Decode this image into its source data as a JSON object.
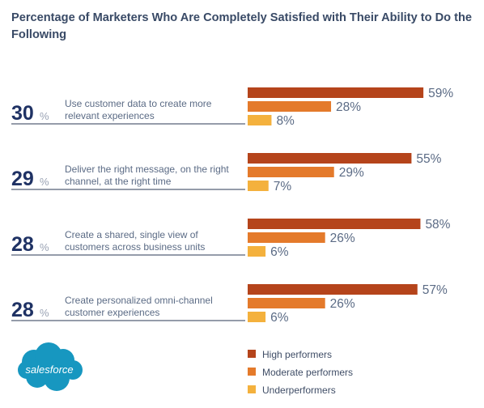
{
  "title": "Percentage of Marketers Who Are Completely Satisfied with Their Ability to Do the Following",
  "logo": {
    "text": "salesforce",
    "color": "#1797c0"
  },
  "colors": {
    "high_performers": "#b5441b",
    "moderate_performers": "#e47a2b",
    "underperformers": "#f4b13d",
    "overall_number": "#1f3264",
    "text": "#5b6b85",
    "divider": "#2b3a55"
  },
  "legend": [
    {
      "label": "High performers",
      "color": "#b5441b"
    },
    {
      "label": "Moderate performers",
      "color": "#e47a2b"
    },
    {
      "label": "Underperformers",
      "color": "#f4b13d"
    }
  ],
  "chart_data": {
    "type": "bar",
    "orientation": "horizontal",
    "unit": "%",
    "categories": [
      "Use customer data to create more relevant experiences",
      "Deliver the right message, on the right channel, at the right time",
      "Create a shared, single view of customers across business units",
      "Create personalized omni-channel customer experiences"
    ],
    "category_lines": [
      [
        "Use customer data to create more",
        "relevant experiences"
      ],
      [
        "Deliver the right message, on the right",
        "channel, at the right time"
      ],
      [
        "Create a shared, single view of",
        "customers across business units"
      ],
      [
        "Create personalized omni-channel",
        "customer experiences"
      ]
    ],
    "overall": [
      30,
      29,
      28,
      28
    ],
    "overall_suffix": "%",
    "series": [
      {
        "name": "High performers",
        "values": [
          59,
          55,
          58,
          57
        ]
      },
      {
        "name": "Moderate performers",
        "values": [
          28,
          29,
          26,
          26
        ]
      },
      {
        "name": "Underperformers",
        "values": [
          8,
          7,
          6,
          6
        ]
      }
    ],
    "legend_position": "bottom",
    "grid": false,
    "xlim": [
      0,
      100
    ]
  }
}
